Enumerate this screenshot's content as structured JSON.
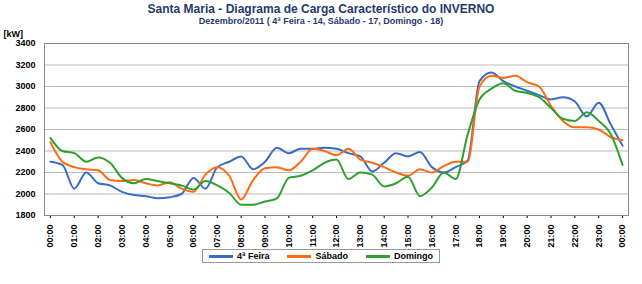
{
  "chart_data": {
    "type": "line",
    "title": "Santa Maria - Diagrama de Carga Característico do INVERNO",
    "subtitle": "Dezembro/2011 ( 4ª Feira - 14, Sábado - 17, Domingo - 18)",
    "y_label": "[kW]",
    "categories": [
      "00:00",
      null,
      "01:00",
      null,
      "02:00",
      null,
      "03:00",
      null,
      "04:00",
      null,
      "05:00",
      null,
      "06:00",
      null,
      "07:00",
      null,
      "08:00",
      null,
      "09:00",
      null,
      "10:00",
      null,
      "11:00",
      null,
      "12:00",
      null,
      "13:00",
      null,
      "14:00",
      null,
      "15:00",
      null,
      "16:00",
      null,
      "17:00",
      null,
      "18:00",
      null,
      "19:00",
      null,
      "20:00",
      null,
      "21:00",
      null,
      "22:00",
      null,
      "23:00",
      null,
      "00:00"
    ],
    "series": [
      {
        "name": "4ª Feira",
        "color": "#3a6cc6",
        "values": [
          2300,
          2270,
          2050,
          2200,
          2100,
          2080,
          2020,
          1990,
          1980,
          1960,
          1970,
          2000,
          2150,
          2050,
          2250,
          2300,
          2350,
          2230,
          2300,
          2430,
          2380,
          2420,
          2420,
          2430,
          2420,
          2380,
          2350,
          2210,
          2290,
          2380,
          2350,
          2390,
          2250,
          2200,
          2250,
          2310,
          3050,
          3130,
          3050,
          3000,
          2960,
          2920,
          2880,
          2900,
          2860,
          2720,
          2850,
          2650,
          2450
        ]
      },
      {
        "name": "Sábado",
        "color": "#ff6a13",
        "values": [
          2480,
          2300,
          2250,
          2230,
          2220,
          2130,
          2120,
          2130,
          2100,
          2080,
          2110,
          2050,
          2020,
          2180,
          2250,
          2170,
          1950,
          2130,
          2240,
          2250,
          2220,
          2300,
          2420,
          2400,
          2360,
          2420,
          2320,
          2290,
          2250,
          2200,
          2170,
          2230,
          2200,
          2260,
          2300,
          2300,
          3000,
          3100,
          3080,
          3100,
          3040,
          3000,
          2820,
          2680,
          2620,
          2620,
          2600,
          2530,
          2500
        ]
      },
      {
        "name": "Domingo",
        "color": "#2ea02e",
        "values": [
          2520,
          2400,
          2380,
          2300,
          2340,
          2290,
          2150,
          2100,
          2140,
          2120,
          2100,
          2080,
          2040,
          2120,
          2080,
          2010,
          1900,
          1900,
          1930,
          1960,
          2150,
          2170,
          2220,
          2290,
          2320,
          2140,
          2200,
          2180,
          2070,
          2100,
          2160,
          1980,
          2060,
          2200,
          2140,
          2550,
          2880,
          2980,
          3030,
          2960,
          2940,
          2900,
          2800,
          2700,
          2680,
          2760,
          2680,
          2560,
          2270
        ]
      }
    ],
    "ylim": [
      1800,
      3400
    ],
    "yticks": [
      1800,
      2000,
      2200,
      2400,
      2600,
      2800,
      3000,
      3200,
      3400
    ],
    "grid": true,
    "legend": "bottom"
  }
}
